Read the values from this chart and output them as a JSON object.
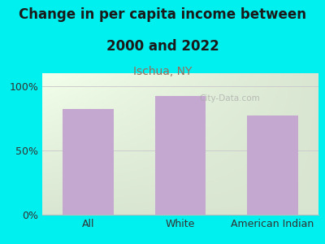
{
  "categories": [
    "All",
    "White",
    "American Indian"
  ],
  "values": [
    82,
    92,
    77
  ],
  "bar_color": "#C4A8D0",
  "title_line1": "Change in per capita income between",
  "title_line2": "2000 and 2022",
  "subtitle": "Ischua, NY",
  "subtitle_color": "#9B6B5A",
  "title_color": "#1a1a1a",
  "bg_color": "#00EFEF",
  "yticks": [
    0,
    50,
    100
  ],
  "ytick_labels": [
    "0%",
    "50%",
    "100%"
  ],
  "ylim": [
    0,
    110
  ],
  "watermark": "City-Data.com",
  "bar_width": 0.55,
  "title_fontsize": 12,
  "subtitle_fontsize": 10,
  "tick_fontsize": 9,
  "grid_color": "#cccccc",
  "plot_bg_colors": [
    "#e8f5e2",
    "#f8faf0"
  ]
}
